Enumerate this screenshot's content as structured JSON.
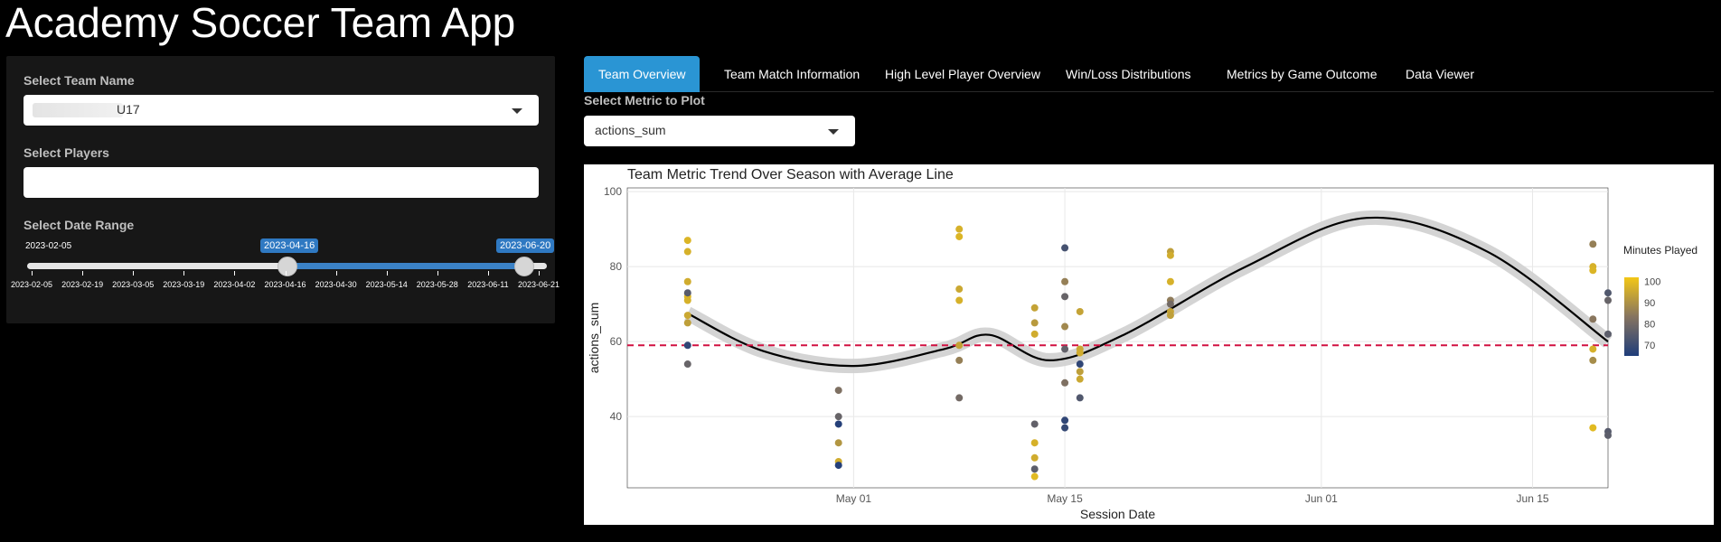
{
  "app": {
    "title": "Academy Soccer Team App"
  },
  "sidebar": {
    "team_label": "Select Team Name",
    "team_value": "U17",
    "players_label": "Select Players",
    "players_value": "",
    "date_label": "Select Date Range",
    "date_min": "2023-02-05",
    "date_from": "2023-04-16",
    "date_to": "2023-06-20",
    "tick_labels": [
      "2023-02-05",
      "2023-02-19",
      "2023-03-05",
      "2023-03-19",
      "2023-04-02",
      "2023-04-16",
      "2023-04-30",
      "2023-05-14",
      "2023-05-28",
      "2023-06-11",
      "2023-06-21"
    ],
    "colors": {
      "accent": "#2f79c2"
    }
  },
  "tabs": [
    {
      "label": "Team Overview",
      "active": true
    },
    {
      "label": "Team Match Information",
      "active": false
    },
    {
      "label": "High Level Player Overview",
      "active": false
    },
    {
      "label": "Win/Loss Distributions",
      "active": false
    },
    {
      "label": "Metrics by Game Outcome",
      "active": false
    },
    {
      "label": "Data Viewer",
      "active": false
    }
  ],
  "metric": {
    "label": "Select Metric to Plot",
    "value": "actions_sum"
  },
  "chart_data": {
    "type": "scatter",
    "title": "Team Metric Trend Over Season with Average Line",
    "xlabel": "Session Date",
    "ylabel": "actions_sum",
    "x_ticks": [
      "May 01",
      "May 15",
      "Jun 01",
      "Jun 15"
    ],
    "y_ticks": [
      40,
      60,
      80,
      100
    ],
    "ylim": [
      21,
      101
    ],
    "xlim": [
      "2023-04-16",
      "2023-06-20"
    ],
    "average_line": 59,
    "legend": {
      "title": "Minutes Played",
      "ticks": [
        100,
        90,
        80,
        70
      ],
      "range": [
        65,
        102
      ],
      "low_color": "#1f3d7a",
      "high_color": "#f3c716",
      "position": "right"
    },
    "grid": true,
    "trend": [
      {
        "x": "2023-04-20",
        "y": 67.5
      },
      {
        "x": "2023-04-25",
        "y": 57.5
      },
      {
        "x": "2023-05-01",
        "y": 53.5
      },
      {
        "x": "2023-05-07",
        "y": 58
      },
      {
        "x": "2023-05-10",
        "y": 61.8
      },
      {
        "x": "2023-05-14",
        "y": 55
      },
      {
        "x": "2023-05-19",
        "y": 62
      },
      {
        "x": "2023-05-27",
        "y": 80
      },
      {
        "x": "2023-06-04",
        "y": 93
      },
      {
        "x": "2023-06-12",
        "y": 84
      },
      {
        "x": "2023-06-20",
        "y": 60
      }
    ],
    "points": [
      {
        "x": "2023-04-20",
        "y": 87,
        "minutes": 98
      },
      {
        "x": "2023-04-20",
        "y": 84,
        "minutes": 97
      },
      {
        "x": "2023-04-20",
        "y": 76,
        "minutes": 96
      },
      {
        "x": "2023-04-20",
        "y": 72,
        "minutes": 99
      },
      {
        "x": "2023-04-20",
        "y": 71,
        "minutes": 97
      },
      {
        "x": "2023-04-20",
        "y": 73,
        "minutes": 75
      },
      {
        "x": "2023-04-20",
        "y": 67,
        "minutes": 95
      },
      {
        "x": "2023-04-20",
        "y": 65,
        "minutes": 93
      },
      {
        "x": "2023-04-20",
        "y": 59,
        "minutes": 68
      },
      {
        "x": "2023-04-20",
        "y": 54,
        "minutes": 78
      },
      {
        "x": "2023-04-30",
        "y": 47,
        "minutes": 82
      },
      {
        "x": "2023-04-30",
        "y": 40,
        "minutes": 78
      },
      {
        "x": "2023-04-30",
        "y": 38,
        "minutes": 66
      },
      {
        "x": "2023-04-30",
        "y": 33,
        "minutes": 91
      },
      {
        "x": "2023-04-30",
        "y": 28,
        "minutes": 96
      },
      {
        "x": "2023-04-30",
        "y": 27,
        "minutes": 66
      },
      {
        "x": "2023-05-08",
        "y": 90,
        "minutes": 97
      },
      {
        "x": "2023-05-08",
        "y": 88,
        "minutes": 98
      },
      {
        "x": "2023-05-08",
        "y": 74,
        "minutes": 95
      },
      {
        "x": "2023-05-08",
        "y": 71,
        "minutes": 97
      },
      {
        "x": "2023-05-08",
        "y": 59,
        "minutes": 94
      },
      {
        "x": "2023-05-08",
        "y": 55,
        "minutes": 86
      },
      {
        "x": "2023-05-08",
        "y": 45,
        "minutes": 80
      },
      {
        "x": "2023-05-13",
        "y": 69,
        "minutes": 94
      },
      {
        "x": "2023-05-13",
        "y": 65,
        "minutes": 92
      },
      {
        "x": "2023-05-13",
        "y": 62,
        "minutes": 96
      },
      {
        "x": "2023-05-13",
        "y": 38,
        "minutes": 77
      },
      {
        "x": "2023-05-13",
        "y": 33,
        "minutes": 97
      },
      {
        "x": "2023-05-13",
        "y": 29,
        "minutes": 96
      },
      {
        "x": "2023-05-13",
        "y": 26,
        "minutes": 76
      },
      {
        "x": "2023-05-13",
        "y": 24,
        "minutes": 99
      },
      {
        "x": "2023-05-15",
        "y": 85,
        "minutes": 72
      },
      {
        "x": "2023-05-15",
        "y": 76,
        "minutes": 86
      },
      {
        "x": "2023-05-15",
        "y": 72,
        "minutes": 78
      },
      {
        "x": "2023-05-15",
        "y": 64,
        "minutes": 88
      },
      {
        "x": "2023-05-15",
        "y": 58,
        "minutes": 77
      },
      {
        "x": "2023-05-15",
        "y": 49,
        "minutes": 82
      },
      {
        "x": "2023-05-15",
        "y": 39,
        "minutes": 68
      },
      {
        "x": "2023-05-15",
        "y": 37,
        "minutes": 69
      },
      {
        "x": "2023-05-16",
        "y": 68,
        "minutes": 94
      },
      {
        "x": "2023-05-16",
        "y": 58,
        "minutes": 95
      },
      {
        "x": "2023-05-16",
        "y": 57,
        "minutes": 96
      },
      {
        "x": "2023-05-16",
        "y": 54,
        "minutes": 68
      },
      {
        "x": "2023-05-16",
        "y": 52,
        "minutes": 93
      },
      {
        "x": "2023-05-16",
        "y": 50,
        "minutes": 95
      },
      {
        "x": "2023-05-16",
        "y": 45,
        "minutes": 74
      },
      {
        "x": "2023-05-22",
        "y": 84,
        "minutes": 93
      },
      {
        "x": "2023-05-22",
        "y": 83,
        "minutes": 96
      },
      {
        "x": "2023-05-22",
        "y": 76,
        "minutes": 97
      },
      {
        "x": "2023-05-22",
        "y": 71,
        "minutes": 85
      },
      {
        "x": "2023-05-22",
        "y": 70,
        "minutes": 80
      },
      {
        "x": "2023-05-22",
        "y": 68,
        "minutes": 94
      },
      {
        "x": "2023-05-22",
        "y": 67,
        "minutes": 93
      },
      {
        "x": "2023-06-19",
        "y": 86,
        "minutes": 86
      },
      {
        "x": "2023-06-19",
        "y": 80,
        "minutes": 97
      },
      {
        "x": "2023-06-19",
        "y": 79,
        "minutes": 98
      },
      {
        "x": "2023-06-19",
        "y": 66,
        "minutes": 84
      },
      {
        "x": "2023-06-19",
        "y": 58,
        "minutes": 97
      },
      {
        "x": "2023-06-19",
        "y": 55,
        "minutes": 89
      },
      {
        "x": "2023-06-19",
        "y": 37,
        "minutes": 99
      },
      {
        "x": "2023-06-20",
        "y": 73,
        "minutes": 74
      },
      {
        "x": "2023-06-20",
        "y": 71,
        "minutes": 78
      },
      {
        "x": "2023-06-20",
        "y": 62,
        "minutes": 76
      },
      {
        "x": "2023-06-20",
        "y": 36,
        "minutes": 75
      },
      {
        "x": "2023-06-20",
        "y": 35,
        "minutes": 76
      }
    ]
  }
}
